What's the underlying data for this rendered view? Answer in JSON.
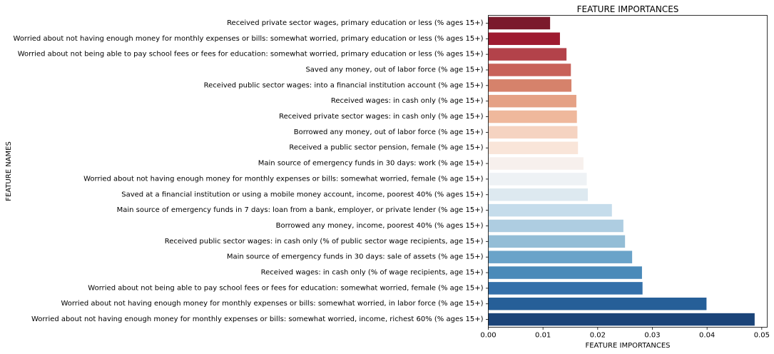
{
  "chart_data": {
    "type": "bar",
    "orientation": "horizontal",
    "title": "FEATURE IMPORTANCES",
    "xlabel": "FEATURE IMPORTANCES",
    "ylabel": "FEATURE NAMES",
    "xlim": [
      0,
      0.051
    ],
    "xticks": [
      0.0,
      0.01,
      0.02,
      0.03,
      0.04,
      0.05
    ],
    "xtick_labels": [
      "0.00",
      "0.01",
      "0.02",
      "0.03",
      "0.04",
      "0.05"
    ],
    "grid": false,
    "legend": "none",
    "categories": [
      "Received private sector wages, primary education or less (% ages 15+)",
      "Worried about not having enough money for monthly expenses or bills: somewhat worried, primary education or less (% ages 15+)",
      "Worried about not being able to pay school fees or fees for education: somewhat worried, primary education or less (% ages 15+)",
      "Saved any money, out of labor force (% age 15+)",
      "Received public sector wages: into a financial institution account (% age 15+)",
      "Received wages: in cash only (% age 15+)",
      "Received private sector wages: in cash only (% age 15+)",
      "Borrowed any money, out of labor force (% age 15+)",
      "Received a public sector pension, female (% age 15+)",
      "Main source of emergency funds in 30 days: work (% age 15+)",
      "Worried about not having enough money for monthly expenses or bills: somewhat worried, female (% age 15+)",
      "Saved at a financial institution or using a mobile money account, income, poorest 40% (% ages 15+)",
      "Main source of emergency funds in 7 days: loan from a bank, employer, or private lender (% age 15+)",
      "Borrowed any money, income, poorest 40% (% ages 15+)",
      "Received public sector wages: in cash only (% of public sector wage recipients, age 15+)",
      "Main source of emergency funds in 30 days: sale of assets (% age 15+)",
      "Received wages: in cash only (% of wage recipients, age 15+)",
      "Worried about not being able to pay school fees or fees for education: somewhat worried, female (% age 15+)",
      "Worried about not having enough money for monthly expenses or bills: somewhat worried, in labor force (% age 15+)",
      "Worried about not having enough money for monthly expenses or bills: somewhat worried, income, richest 60% (% ages 15+)"
    ],
    "values": [
      0.0113,
      0.0131,
      0.0143,
      0.0151,
      0.0152,
      0.0161,
      0.0162,
      0.0163,
      0.0164,
      0.0174,
      0.018,
      0.0182,
      0.0226,
      0.0247,
      0.025,
      0.0263,
      0.0281,
      0.0282,
      0.0399,
      0.0487
    ],
    "colors": [
      "#7b1a2c",
      "#9e1b30",
      "#b3424a",
      "#c8625a",
      "#d6826b",
      "#e5a185",
      "#efb89c",
      "#f5d3c1",
      "#f9e5d9",
      "#f7f0ed",
      "#eef2f5",
      "#dde9f0",
      "#c5dceb",
      "#aecde1",
      "#93bdd6",
      "#6aa3c9",
      "#4a8ab9",
      "#3470aa",
      "#265f98",
      "#1b4479"
    ]
  }
}
